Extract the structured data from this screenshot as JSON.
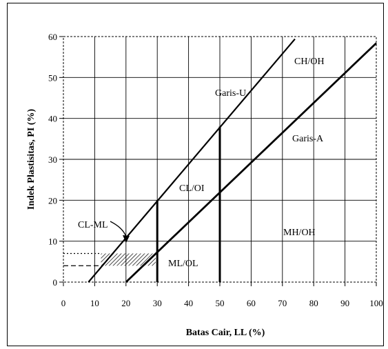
{
  "chart_data": {
    "type": "line",
    "xlabel": "Batas Cair, LL (%)",
    "ylabel": "Indek Plastisitas, PI (%)",
    "xlim": [
      0,
      100
    ],
    "ylim": [
      0,
      60
    ],
    "x_ticks": [
      0,
      10,
      20,
      30,
      40,
      50,
      60,
      70,
      80,
      90,
      100
    ],
    "y_ticks": [
      0,
      10,
      20,
      30,
      40,
      50,
      60
    ],
    "grid": true,
    "series": [
      {
        "name": "Garis-U",
        "x": [
          8,
          74
        ],
        "y": [
          0,
          59.4
        ]
      },
      {
        "name": "Garis-A",
        "x": [
          20,
          100
        ],
        "y": [
          0,
          58.4
        ]
      }
    ],
    "boundaries": [
      {
        "x": [
          30,
          30
        ],
        "y": [
          0,
          20
        ]
      },
      {
        "x": [
          50,
          50
        ],
        "y": [
          0,
          38
        ]
      }
    ],
    "cl_ml_zone": {
      "x_min": 12,
      "x_max": 29.5,
      "y_min": 4,
      "y_max": 7
    },
    "region_labels": [
      "CH/OH",
      "Garis-U",
      "Garis-A",
      "CL/OI",
      "MH/OH",
      "ML/OL",
      "CL-ML"
    ]
  }
}
